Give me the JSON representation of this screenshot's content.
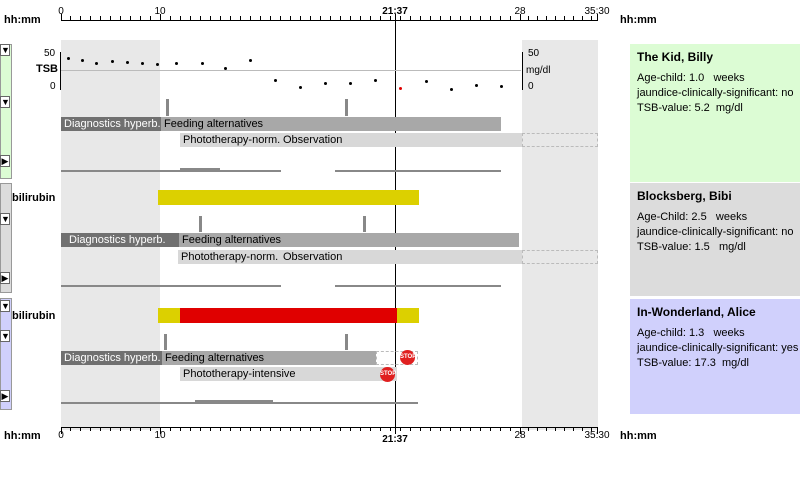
{
  "axis": {
    "label_left": "hh:mm",
    "label_right": "hh:mm",
    "ticks": [
      "0",
      "10",
      "21:37",
      "28",
      "35:30"
    ],
    "current_time": "21:37"
  },
  "chart": {
    "ylabel": "TSB",
    "y_top": "50",
    "y_bottom": "0",
    "unit": "mg/dl"
  },
  "patients": [
    {
      "name": "The Kid, Billy",
      "age_label": "Age-child: 1.0",
      "age_unit": "weeks",
      "jaundice": "jaundice-clinically-significant: no",
      "tsb": "TSB-value: 5.2",
      "tsb_unit": "mg/dl",
      "color": "#dcfcd4",
      "bars": {
        "diag": "Diagnostics hyperb.",
        "feed": "Feeding alternatives",
        "photo": "Phototherapy-norm.",
        "obs": "Observation"
      }
    },
    {
      "name": "Blocksberg, Bibi",
      "age_label": "Age-Child: 2.5",
      "age_unit": "weeks",
      "jaundice": "jaundice-clinically-significant: no",
      "tsb": "TSB-value: 1.5",
      "tsb_unit": "mg/dl",
      "color": "#dcdcdc",
      "track_label": "bilirubin",
      "bars": {
        "diag": "Diagnostics hyperb.",
        "feed": "Feeding alternatives",
        "photo": "Phototherapy-norm.",
        "obs": "Observation"
      }
    },
    {
      "name": "In-Wonderland, Alice",
      "age_label": "Age-child: 1.3",
      "age_unit": "weeks",
      "jaundice": "jaundice-clinically-significant: yes",
      "tsb": "TSB-value: 17.3",
      "tsb_unit": "mg/dl",
      "color": "#d0d0fc",
      "track_label": "bilirubin",
      "bars": {
        "diag": "Diagnostics hyperb.",
        "feed": "Feeding alternatives",
        "photo": "Phototherapy-intensive"
      },
      "stop_label": "STOP"
    }
  ],
  "icons": {
    "expand": "triangle-down-icon",
    "collapse": "triangle-right-icon"
  }
}
